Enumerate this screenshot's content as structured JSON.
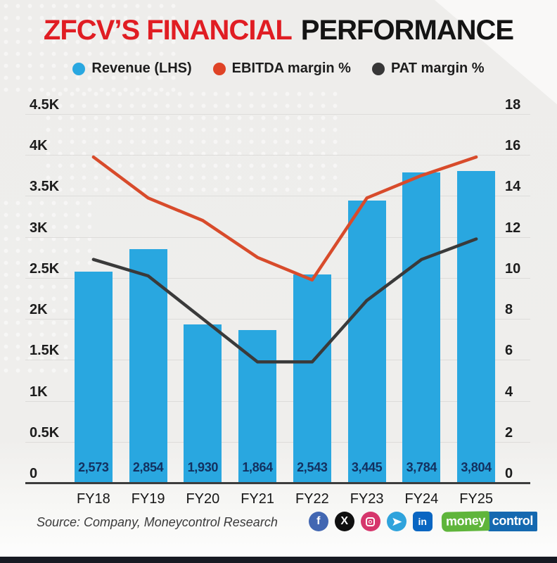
{
  "title": {
    "red": "ZFCV’S FINANCIAL",
    "black": "PERFORMANCE"
  },
  "legend": {
    "items": [
      {
        "label": "Revenue (LHS)",
        "color": "#29a7e0"
      },
      {
        "label": "EBITDA margin %",
        "color": "#df4326"
      },
      {
        "label": "PAT margin %",
        "color": "#373737"
      }
    ]
  },
  "chart_data": {
    "type": "bar+line combo",
    "categories": [
      "FY18",
      "FY19",
      "FY20",
      "FY21",
      "FY22",
      "FY23",
      "FY24",
      "FY25"
    ],
    "series": [
      {
        "name": "Revenue (LHS)",
        "type": "bar",
        "axis": "left",
        "color": "#29a7e0",
        "values": [
          2573,
          2854,
          1930,
          1864,
          2543,
          3445,
          3784,
          3804
        ],
        "value_labels": [
          "2,573",
          "2,854",
          "1,930",
          "1,864",
          "2,543",
          "3,445",
          "3,784",
          "3,804"
        ]
      },
      {
        "name": "EBITDA margin %",
        "type": "line",
        "axis": "right",
        "color": "#d84b2b",
        "values": [
          15.9,
          13.9,
          12.8,
          11.0,
          9.9,
          13.9,
          15.0,
          15.9
        ]
      },
      {
        "name": "PAT margin %",
        "type": "line",
        "axis": "right",
        "color": "#3a3a3a",
        "values": [
          10.9,
          10.1,
          8.0,
          5.9,
          5.9,
          8.9,
          10.9,
          11.9
        ]
      }
    ],
    "left_axis": {
      "min": 0,
      "max": 4500,
      "ticks": [
        "4.5K",
        "4K",
        "3.5K",
        "3K",
        "2.5K",
        "2K",
        "1.5K",
        "1K",
        "0.5K",
        "0"
      ]
    },
    "right_axis": {
      "min": 0,
      "max": 18,
      "ticks": [
        "18",
        "16",
        "14",
        "12",
        "10",
        "8",
        "6",
        "4",
        "2",
        "0"
      ]
    },
    "grid": true,
    "legend_position": "top"
  },
  "footer": {
    "source": "Source: Company, Moneycontrol Research",
    "social_icons": [
      {
        "name": "facebook-icon",
        "glyph": "f",
        "color": "#4267b2",
        "shape": "circle"
      },
      {
        "name": "x-icon",
        "glyph": "X",
        "color": "#101010",
        "shape": "circle"
      },
      {
        "name": "instagram-icon",
        "glyph": "",
        "color": "#d6366c",
        "shape": "circle"
      },
      {
        "name": "telegram-icon",
        "glyph": "",
        "color": "#2fa3dc",
        "shape": "circle"
      },
      {
        "name": "linkedin-icon",
        "glyph": "in",
        "color": "#0a66c2",
        "shape": "square"
      }
    ],
    "brand": {
      "part1": "money",
      "part1_color": "#5fb53b",
      "part2": "control",
      "part2_color": "#1569b0"
    }
  },
  "colors": {
    "title_red": "#e01d23",
    "title_black": "#141414",
    "grid": "#dddcda",
    "axis_line": "#3d3d3d",
    "bar_value_text": "#13305f",
    "bottom_bar": "#171a23",
    "background": "#efeeec"
  }
}
